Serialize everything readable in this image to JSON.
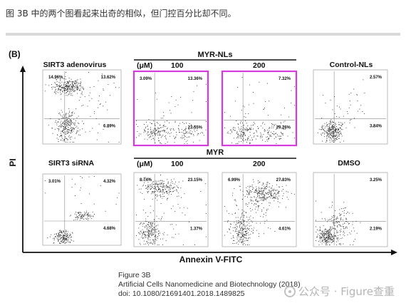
{
  "header": {
    "caption": "图 3B 中的两个图看起来出奇的相似，但门控百分比却不同。"
  },
  "figure": {
    "panel_label": "(B)",
    "y_axis_label": "PI",
    "x_axis_label": "Annexin V-FITC",
    "row1": {
      "group_label": "MYR-NLs",
      "unit_label": "(μM)",
      "dose_low": "100",
      "dose_high": "200",
      "plots": [
        {
          "title": "SIRT3 adenovirus",
          "ul": "14.96%",
          "ur": "13.62%",
          "lr": "6.89%",
          "ll": "",
          "highlight": false
        },
        {
          "title": "",
          "ul": "3.09%",
          "ur": "13.36%",
          "lr": "23.55%",
          "ll": "",
          "highlight": true
        },
        {
          "title": "",
          "ul": "",
          "ur": "7.32%",
          "lr": "29.76%",
          "ll": "",
          "highlight": true
        },
        {
          "title": "Control-NLs",
          "ul": "",
          "ur": "2.57%",
          "lr": "3.84%",
          "ll": "",
          "highlight": false
        }
      ]
    },
    "row2": {
      "group_label": "MYR",
      "unit_label": "(μM)",
      "dose_low": "100",
      "dose_high": "200",
      "plots": [
        {
          "title": "SIRT3 siRNA",
          "ul": "3.01%",
          "ur": "4.32%",
          "lr": "4.68%",
          "ll": "",
          "highlight": false
        },
        {
          "title": "",
          "ul": "8.74%",
          "ur": "23.15%",
          "lr": "1.37%",
          "ll": "",
          "highlight": false
        },
        {
          "title": "",
          "ul": "6.99%",
          "ur": "27.83%",
          "lr": "4.61%",
          "ll": "",
          "highlight": false
        },
        {
          "title": "DMSO",
          "ul": "",
          "ur": "3.25%",
          "lr": "2.19%",
          "ll": "",
          "highlight": false
        }
      ]
    },
    "highlight_color": "#d63be0"
  },
  "source": {
    "line1": "Figure 3B",
    "line2": "Artificial Cells Nanomedicine and Biotechnology (2018)",
    "line3": "doi: 10.1080/21691401.2018.1489825"
  },
  "watermark": {
    "text": "公众号 · Figure查重"
  }
}
